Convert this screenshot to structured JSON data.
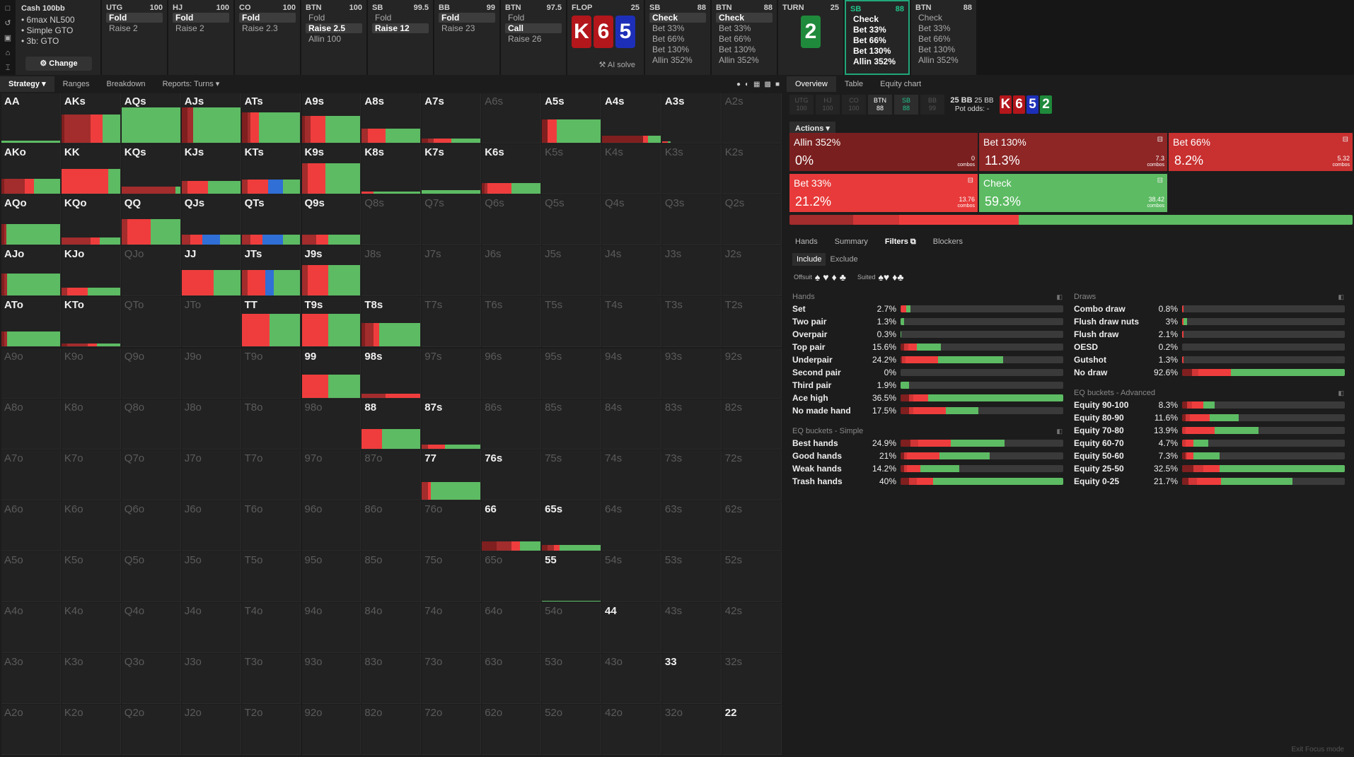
{
  "colors": {
    "fold": "#2f6fd6",
    "check": "#5dbb63",
    "bet_small": "#ef3d3d",
    "bet_mid": "#d13535",
    "bet_big": "#a32c2c",
    "allin": "#7f1f1f",
    "empty": "#2e2e2e",
    "accent": "#21c48a"
  },
  "topbar": {
    "tool_icons": [
      "square-icon",
      "undo-icon",
      "save-icon",
      "tree-icon",
      "cursor-icon"
    ],
    "cash": {
      "title": "Cash 100bb",
      "items": [
        "6max NL500",
        "Simple GTO",
        "3b: GTO"
      ],
      "change_label": "Change",
      "change_icon": "gear-icon"
    },
    "positions": [
      {
        "name": "UTG",
        "stack": "100",
        "actions": [
          {
            "label": "Fold",
            "selected": true
          },
          {
            "label": "Raise 2",
            "selected": false
          }
        ]
      },
      {
        "name": "HJ",
        "stack": "100",
        "actions": [
          {
            "label": "Fold",
            "selected": true
          },
          {
            "label": "Raise 2",
            "selected": false
          }
        ]
      },
      {
        "name": "CO",
        "stack": "100",
        "actions": [
          {
            "label": "Fold",
            "selected": true
          },
          {
            "label": "Raise 2.3",
            "selected": false
          }
        ]
      },
      {
        "name": "BTN",
        "stack": "100",
        "actions": [
          {
            "label": "Fold",
            "selected": false
          },
          {
            "label": "Raise 2.5",
            "selected": true
          },
          {
            "label": "Allin 100",
            "selected": false
          }
        ]
      },
      {
        "name": "SB",
        "stack": "99.5",
        "actions": [
          {
            "label": "Fold",
            "selected": false
          },
          {
            "label": "Raise 12",
            "selected": true
          }
        ]
      },
      {
        "name": "BB",
        "stack": "99",
        "actions": [
          {
            "label": "Fold",
            "selected": true
          },
          {
            "label": "Raise 23",
            "selected": false
          }
        ]
      },
      {
        "name": "BTN",
        "stack": "97.5",
        "actions": [
          {
            "label": "Fold",
            "selected": false
          },
          {
            "label": "Call",
            "selected": true
          },
          {
            "label": "Raise 26",
            "selected": false
          }
        ]
      }
    ],
    "flop": {
      "label": "FLOP",
      "pot": "25",
      "cards": [
        {
          "rank": "K",
          "color": "#b3161b"
        },
        {
          "rank": "6",
          "color": "#b3161b"
        },
        {
          "rank": "5",
          "color": "#1d2fb8"
        }
      ],
      "ai_solve": "AI solve"
    },
    "flop_actions": [
      {
        "name": "SB",
        "stack": "88",
        "actions": [
          {
            "label": "Check",
            "selected": true
          },
          {
            "label": "Bet 33%",
            "selected": false
          },
          {
            "label": "Bet 66%",
            "selected": false
          },
          {
            "label": "Bet 130%",
            "selected": false
          },
          {
            "label": "Allin 352%",
            "selected": false
          }
        ]
      },
      {
        "name": "BTN",
        "stack": "88",
        "actions": [
          {
            "label": "Check",
            "selected": true
          },
          {
            "label": "Bet 33%",
            "selected": false
          },
          {
            "label": "Bet 66%",
            "selected": false
          },
          {
            "label": "Bet 130%",
            "selected": false
          },
          {
            "label": "Allin 352%",
            "selected": false
          }
        ]
      }
    ],
    "turn": {
      "label": "TURN",
      "pot": "25",
      "card": {
        "rank": "2",
        "color": "#1f8a3b"
      }
    },
    "turn_actions": [
      {
        "name": "SB",
        "stack": "88",
        "active": true,
        "actions": [
          {
            "label": "Check",
            "selected": false
          },
          {
            "label": "Bet 33%",
            "selected": false
          },
          {
            "label": "Bet 66%",
            "selected": false
          },
          {
            "label": "Bet 130%",
            "selected": false
          },
          {
            "label": "Allin 352%",
            "selected": false
          }
        ]
      },
      {
        "name": "BTN",
        "stack": "88",
        "active": false,
        "actions": [
          {
            "label": "Check",
            "selected": false
          },
          {
            "label": "Bet 33%",
            "selected": false
          },
          {
            "label": "Bet 66%",
            "selected": false
          },
          {
            "label": "Bet 130%",
            "selected": false
          },
          {
            "label": "Allin 352%",
            "selected": false
          }
        ]
      }
    ]
  },
  "left_tabs": [
    "Strategy",
    "Ranges",
    "Breakdown",
    "Reports: Turns"
  ],
  "view_icons": [
    "circle-icon",
    "contrast-icon",
    "grid-small-icon",
    "grid-icon",
    "square-icon"
  ],
  "ranks": [
    "A",
    "K",
    "Q",
    "J",
    "T",
    "9",
    "8",
    "7",
    "6",
    "5",
    "4",
    "3",
    "2"
  ],
  "hands": {
    "AA": [
      0,
      0,
      0,
      0,
      1,
      0.06
    ],
    "AKs": [
      0.05,
      0.45,
      0.2,
      0,
      0.3,
      0.8
    ],
    "AQs": [
      0,
      0,
      0,
      0,
      1,
      1
    ],
    "AJs": [
      0.1,
      0.1,
      0,
      0,
      0.8,
      1
    ],
    "ATs": [
      0.1,
      0.05,
      0.15,
      0,
      0.7,
      0.85
    ],
    "A9s": [
      0.05,
      0.1,
      0.25,
      0,
      0.6,
      0.75
    ],
    "A8s": [
      0,
      0.1,
      0.3,
      0,
      0.6,
      0.4
    ],
    "A7s": [
      0.1,
      0.1,
      0.3,
      0,
      0.5,
      0.12
    ],
    "A6s": null,
    "A5s": [
      0.1,
      0,
      0.15,
      0,
      0.75,
      0.65
    ],
    "A4s": [
      0.7,
      0,
      0.08,
      0,
      0.22,
      0.2
    ],
    "A3s": [
      0,
      0,
      0.1,
      0,
      0.05,
      0.04
    ],
    "A2s": null,
    "AKo": [
      0.05,
      0.35,
      0.15,
      0,
      0.45,
      0.42
    ],
    "KK": [
      0,
      0,
      0.8,
      0,
      0.2,
      0.7
    ],
    "KQs": [
      0,
      0.92,
      0,
      0,
      0.08,
      0.2
    ],
    "KJs": [
      0,
      0.1,
      0.35,
      0,
      0.55,
      0.35
    ],
    "KTs": [
      0,
      0.1,
      0.35,
      0.25,
      0.3,
      0.4
    ],
    "K9s": [
      0,
      0.1,
      0.3,
      0,
      0.6,
      0.85
    ],
    "K8s": [
      0,
      0,
      0.2,
      0,
      0.8,
      0.06
    ],
    "K7s": [
      0,
      0,
      0,
      0,
      1,
      0.1
    ],
    "K6s": [
      0.05,
      0.05,
      0.4,
      0,
      0.5,
      0.3
    ],
    "AQo": [
      0.05,
      0.03,
      0,
      0,
      0.92,
      0.58
    ],
    "KQo": [
      0,
      0.5,
      0.15,
      0,
      0.35,
      0.2
    ],
    "QQ": [
      0,
      0.1,
      0.4,
      0,
      0.5,
      0.72
    ],
    "QJs": [
      0,
      0.15,
      0.2,
      0.3,
      0.35,
      0.28
    ],
    "QTs": [
      0,
      0.15,
      0.2,
      0.35,
      0.3,
      0.28
    ],
    "Q9s": [
      0,
      0.25,
      0.2,
      0,
      0.55,
      0.28
    ],
    "AJo": [
      0.05,
      0.05,
      0,
      0,
      0.9,
      0.62
    ],
    "KJo": [
      0,
      0.1,
      0.35,
      0,
      0.55,
      0.22
    ],
    "QJo": null,
    "JJ": [
      0,
      0,
      0.55,
      0,
      0.45,
      0.72
    ],
    "JTs": [
      0,
      0.1,
      0.3,
      0.15,
      0.45,
      0.72
    ],
    "J9s": [
      0,
      0.1,
      0.35,
      0,
      0.55,
      0.85
    ],
    "ATo": [
      0.05,
      0.05,
      0,
      0,
      0.9,
      0.42
    ],
    "KTo": [
      0.1,
      0.35,
      0.15,
      0,
      0.4,
      0.08
    ],
    "QTo": null,
    "JTo": null,
    "TT": [
      0,
      0,
      0.48,
      0,
      0.52,
      0.92
    ],
    "T9s": [
      0,
      0,
      0.45,
      0,
      0.55,
      0.92
    ],
    "T8s": [
      0.05,
      0.15,
      0.1,
      0,
      0.7,
      0.65
    ],
    "99": [
      0,
      0,
      0.45,
      0,
      0.55,
      0.65
    ],
    "98s": [
      0,
      0.4,
      0.6,
      0,
      0,
      0.12
    ],
    "88": [
      0,
      0,
      0.35,
      0,
      0.65,
      0.55
    ],
    "87s": [
      0,
      0.1,
      0.3,
      0,
      0.6,
      0.12
    ],
    "77": [
      0,
      0.1,
      0.05,
      0,
      0.85,
      0.5
    ],
    "76s": null,
    "66": [
      0.25,
      0.25,
      0.15,
      0,
      0.35,
      0.25
    ],
    "65s": [
      0.1,
      0.1,
      0.1,
      0,
      0.7,
      0.15
    ],
    "55": [
      0,
      0,
      0,
      0,
      1,
      0.02
    ]
  },
  "dim_keep_label": [
    "76s",
    "66",
    "65s",
    "55",
    "44",
    "33",
    "22"
  ],
  "right_tabs": [
    "Overview",
    "Table",
    "Equity chart"
  ],
  "seats": [
    {
      "pos": "UTG",
      "stack": "100",
      "state": "off"
    },
    {
      "pos": "HJ",
      "stack": "100",
      "state": "off"
    },
    {
      "pos": "CO",
      "stack": "100",
      "state": "off"
    },
    {
      "pos": "BTN",
      "stack": "88",
      "state": "on"
    },
    {
      "pos": "SB",
      "stack": "88",
      "state": "sb"
    },
    {
      "pos": "BB",
      "stack": "99",
      "state": "off"
    }
  ],
  "pot": {
    "a": "25 BB",
    "b": "25 BB",
    "odds": "Pot odds: -"
  },
  "board_cards": [
    {
      "rank": "K",
      "color": "#b3161b"
    },
    {
      "rank": "6",
      "color": "#b3161b"
    },
    {
      "rank": "5",
      "color": "#1d2fb8"
    },
    {
      "rank": "2",
      "color": "#1f8a3b"
    }
  ],
  "actions_label": "Actions",
  "action_boxes": [
    {
      "name": "Allin 352%",
      "pct": "0%",
      "combos": "0",
      "color": "#7a1f1f"
    },
    {
      "name": "Bet 130%",
      "pct": "11.3%",
      "combos": "7.3",
      "color": "#8e2626"
    },
    {
      "name": "Bet 66%",
      "pct": "8.2%",
      "combos": "5.32",
      "color": "#c93030"
    },
    {
      "name": "Bet 33%",
      "pct": "21.2%",
      "combos": "13.76",
      "color": "#e83a3a"
    },
    {
      "name": "Check",
      "pct": "59.3%",
      "combos": "38.42",
      "color": "#5dbb63"
    }
  ],
  "combos_word": "combos",
  "freq_bar": [
    0.113,
    0.082,
    0.212,
    0.593
  ],
  "sub_tabs": [
    "Hands",
    "Summary",
    "Filters",
    "Blockers"
  ],
  "include_tabs": [
    "Include",
    "Exclude"
  ],
  "suit_labels": {
    "offsuit": "Offsuit",
    "suited": "Suited"
  },
  "stat_groups": [
    {
      "title": "Hands",
      "col": 0,
      "rows": [
        {
          "name": "Set",
          "pct": "2.7%",
          "seg": [
            0,
            0.005,
            0.03,
            0,
            0.025
          ]
        },
        {
          "name": "Two pair",
          "pct": "1.3%",
          "seg": [
            0,
            0,
            0,
            0,
            0.02
          ]
        },
        {
          "name": "Overpair",
          "pct": "0.3%",
          "seg": [
            0,
            0,
            0,
            0,
            0.005
          ]
        },
        {
          "name": "Top pair",
          "pct": "15.6%",
          "seg": [
            0.02,
            0.03,
            0.05,
            0,
            0.15
          ]
        },
        {
          "name": "Underpair",
          "pct": "24.2%",
          "seg": [
            0.01,
            0.02,
            0.2,
            0,
            0.4
          ]
        },
        {
          "name": "Second pair",
          "pct": "0%",
          "seg": [
            0,
            0,
            0,
            0,
            0
          ]
        },
        {
          "name": "Third pair",
          "pct": "1.9%",
          "seg": [
            0,
            0,
            0,
            0,
            0.05
          ]
        },
        {
          "name": "Ace high",
          "pct": "36.5%",
          "seg": [
            0.05,
            0.03,
            0.09,
            0,
            0.83
          ]
        },
        {
          "name": "No made hand",
          "pct": "17.5%",
          "seg": [
            0.05,
            0.03,
            0.2,
            0,
            0.2
          ]
        }
      ]
    },
    {
      "title": "EQ buckets - Simple",
      "col": 0,
      "rows": [
        {
          "name": "Best hands",
          "pct": "24.9%",
          "seg": [
            0.06,
            0.05,
            0.2,
            0,
            0.33
          ]
        },
        {
          "name": "Good hands",
          "pct": "21%",
          "seg": [
            0.02,
            0.02,
            0.2,
            0,
            0.31
          ]
        },
        {
          "name": "Weak hands",
          "pct": "14.2%",
          "seg": [
            0.02,
            0.02,
            0.08,
            0,
            0.24
          ]
        },
        {
          "name": "Trash hands",
          "pct": "40%",
          "seg": [
            0.05,
            0.05,
            0.1,
            0,
            0.8
          ]
        }
      ]
    },
    {
      "title": "Draws",
      "col": 1,
      "rows": [
        {
          "name": "Combo draw",
          "pct": "0.8%",
          "seg": [
            0,
            0,
            0.01,
            0,
            0
          ]
        },
        {
          "name": "Flush draw nuts",
          "pct": "3%",
          "seg": [
            0,
            0,
            0.01,
            0,
            0.02
          ]
        },
        {
          "name": "Flush draw",
          "pct": "2.1%",
          "seg": [
            0,
            0,
            0.01,
            0,
            0
          ]
        },
        {
          "name": "OESD",
          "pct": "0.2%",
          "seg": [
            0,
            0,
            0,
            0,
            0
          ]
        },
        {
          "name": "Gutshot",
          "pct": "1.3%",
          "seg": [
            0,
            0,
            0.01,
            0,
            0
          ]
        },
        {
          "name": "No draw",
          "pct": "92.6%",
          "seg": [
            0.06,
            0.04,
            0.2,
            0,
            0.7
          ]
        }
      ]
    },
    {
      "title": "EQ buckets - Advanced",
      "col": 1,
      "rows": [
        {
          "name": "Equity 90-100",
          "pct": "8.3%",
          "seg": [
            0.03,
            0.03,
            0.07,
            0,
            0.07
          ]
        },
        {
          "name": "Equity 80-90",
          "pct": "11.6%",
          "seg": [
            0.02,
            0.03,
            0.12,
            0,
            0.18
          ]
        },
        {
          "name": "Equity 70-80",
          "pct": "13.9%",
          "seg": [
            0,
            0.02,
            0.18,
            0,
            0.27
          ]
        },
        {
          "name": "Equity 60-70",
          "pct": "4.7%",
          "seg": [
            0,
            0.02,
            0.05,
            0,
            0.09
          ]
        },
        {
          "name": "Equity 50-60",
          "pct": "7.3%",
          "seg": [
            0.02,
            0.01,
            0.04,
            0,
            0.16
          ]
        },
        {
          "name": "Equity 25-50",
          "pct": "32.5%",
          "seg": [
            0.07,
            0.06,
            0.1,
            0,
            0.77
          ]
        },
        {
          "name": "Equity 0-25",
          "pct": "21.7%",
          "seg": [
            0.04,
            0.05,
            0.15,
            0,
            0.44
          ]
        }
      ]
    }
  ],
  "exit_label": "Exit Focus mode"
}
